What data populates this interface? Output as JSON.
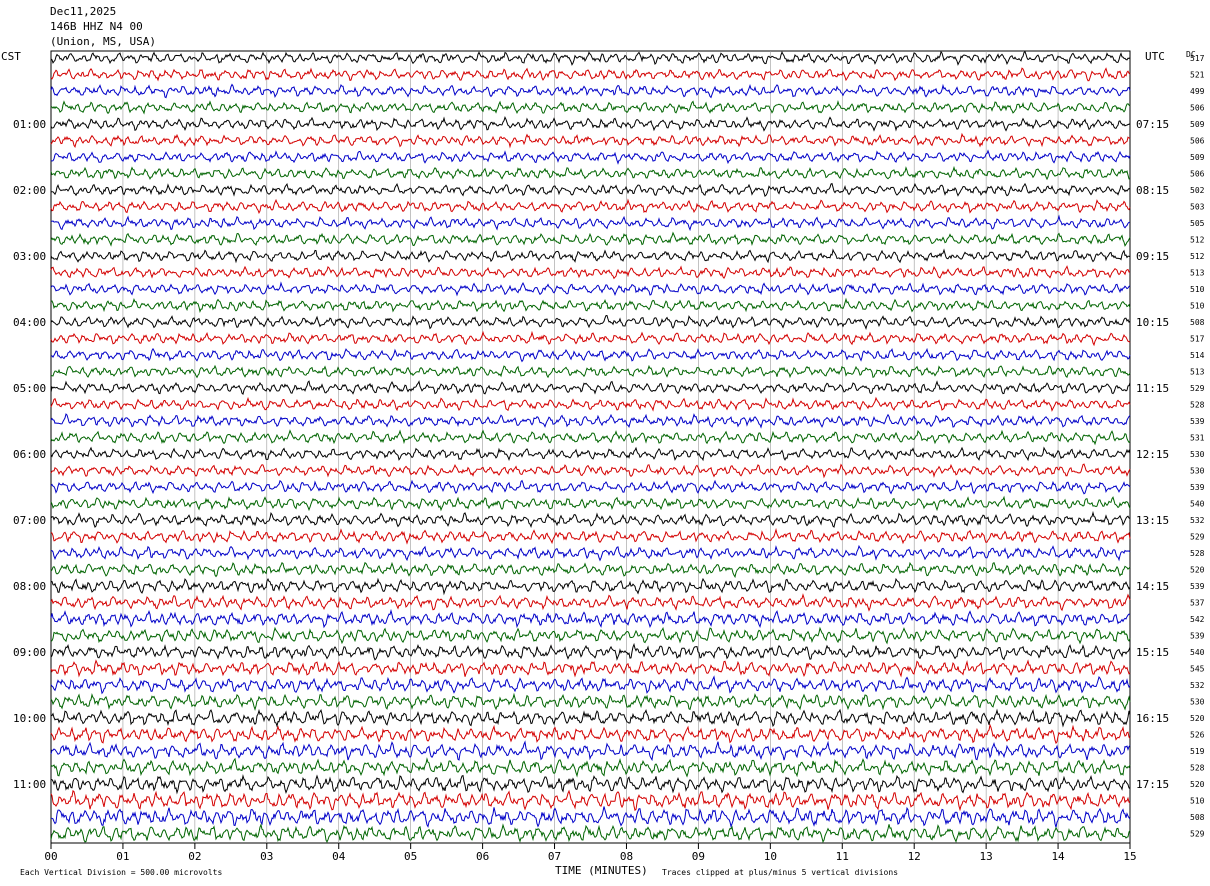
{
  "header": {
    "date": "Dec11,2025",
    "station": "146B HHZ N4 00",
    "location": "(Union, MS, USA)"
  },
  "left_timezone": "CST",
  "right_timezone": "UTC",
  "dc_label": "DC",
  "footer": {
    "scale_note": "Each Vertical Division =  500.00 microvolts",
    "clip_note": "Traces clipped at plus/minus 5 vertical divisions"
  },
  "chart_data": {
    "type": "line",
    "subtype": "helicorder-seismogram",
    "xlabel": "TIME (MINUTES)",
    "xlim": [
      0,
      15
    ],
    "x_ticks": [
      "00",
      "01",
      "02",
      "03",
      "04",
      "05",
      "06",
      "07",
      "08",
      "09",
      "10",
      "11",
      "12",
      "13",
      "14",
      "15"
    ],
    "traces_per_hour": 4,
    "minutes_per_trace": 15,
    "trace_colors": [
      "#000000",
      "#d40000",
      "#0000c8",
      "#006400"
    ],
    "left_hour_labels": [
      "01:00",
      "02:00",
      "03:00",
      "04:00",
      "05:00",
      "06:00",
      "07:00",
      "08:00",
      "09:00",
      "10:00",
      "11:00"
    ],
    "right_hour_labels": [
      "07:15",
      "08:15",
      "09:15",
      "10:15",
      "11:15",
      "12:15",
      "13:15",
      "14:15",
      "15:15",
      "16:15",
      "17:15"
    ],
    "dc_offsets": [
      517,
      521,
      499,
      506,
      509,
      506,
      509,
      506,
      502,
      503,
      505,
      512,
      512,
      513,
      510,
      510,
      508,
      517,
      514,
      513,
      529,
      528,
      539,
      531,
      530,
      530,
      539,
      540,
      532,
      529,
      528,
      520,
      539,
      537,
      542,
      539,
      540,
      545,
      532,
      530,
      520,
      526,
      519,
      528,
      520,
      510,
      508,
      529
    ],
    "trace_amplitude_level": [
      1,
      1,
      1,
      1,
      1,
      1,
      1,
      1,
      1,
      1,
      1,
      1,
      1,
      1,
      1,
      1,
      1,
      1,
      1,
      1,
      1,
      1,
      1.05,
      1.05,
      1,
      1,
      1.05,
      1.05,
      1.1,
      1.1,
      1.1,
      1.1,
      1.2,
      1.2,
      1.25,
      1.25,
      1.25,
      1.3,
      1.3,
      1.3,
      1.35,
      1.35,
      1.4,
      1.4,
      1.45,
      1.55,
      1.6,
      1.45
    ]
  }
}
